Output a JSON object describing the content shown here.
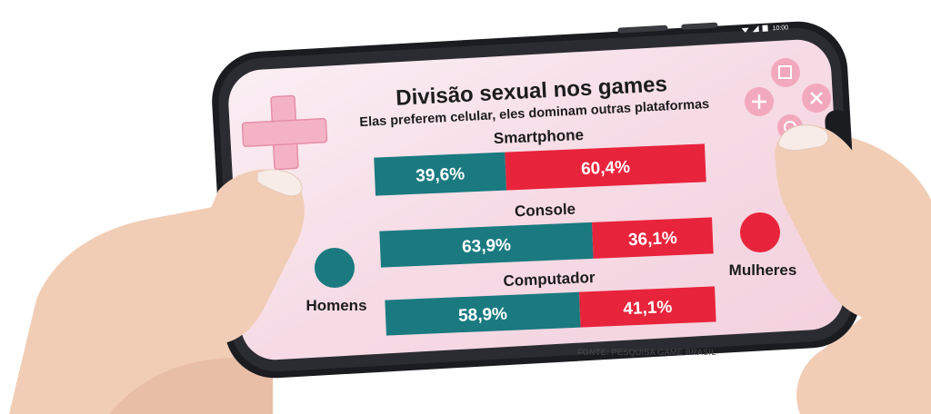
{
  "page": {
    "title": "Divisão sexual nos games",
    "subtitle": "Elas preferem celular, eles dominam outras  plataformas",
    "source": "FONTE: PESQUISA GAME BRASIL",
    "status_time": "10:00"
  },
  "colors": {
    "homens": "#1a7a80",
    "mulheres": "#e8243c",
    "screen_light": "#fbeff4",
    "screen_dark": "#f1c9d8",
    "dpad": "#f4b3c4"
  },
  "icons": [
    "dpad-icon",
    "square-button-icon",
    "plus-button-icon",
    "x-button-icon",
    "circle-button-icon",
    "signal-icon",
    "wifi-icon",
    "battery-icon"
  ],
  "chart_data": {
    "type": "bar",
    "orientation": "horizontal",
    "stacked": true,
    "percent_stacked": true,
    "title": "Divisão sexual nos games",
    "subtitle": "Elas preferem celular, eles dominam outras  plataformas",
    "categories": [
      "Smartphone",
      "Console",
      "Computador"
    ],
    "series": [
      {
        "name": "Homens",
        "values": [
          39.6,
          63.9,
          58.9
        ],
        "labels": [
          "39,6%",
          "63,9%",
          "58,9%"
        ],
        "color": "#1a7a80"
      },
      {
        "name": "Mulheres",
        "values": [
          60.4,
          36.1,
          41.1
        ],
        "labels": [
          "60,4%",
          "36,1%",
          "41,1%"
        ],
        "color": "#e8243c"
      }
    ],
    "legend": [
      {
        "name": "Homens",
        "color": "#1a7a80"
      },
      {
        "name": "Mulheres",
        "color": "#e8243c"
      }
    ],
    "xlim": [
      0,
      100
    ],
    "grid": false,
    "source": "FONTE: PESQUISA GAME BRASIL"
  }
}
